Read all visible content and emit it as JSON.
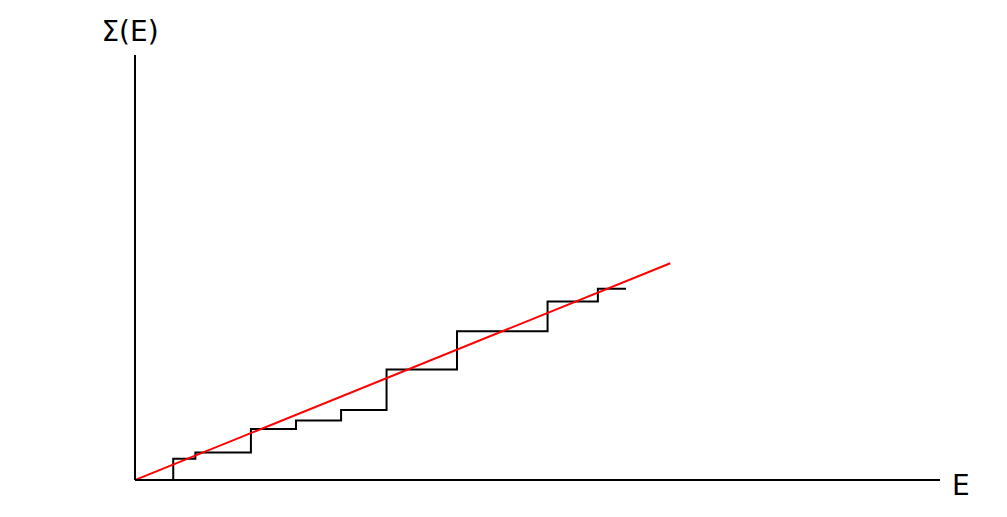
{
  "chart_data": {
    "type": "line",
    "x_label": "E",
    "y_label": "Σ(E)",
    "xlim": [
      0,
      100
    ],
    "ylim": [
      0,
      100
    ],
    "tick_labels": false,
    "grid": false,
    "series": [
      {
        "x": [
          0,
          4.75,
          7.5,
          14.4,
          20,
          25.6,
          31.25,
          40,
          51.25,
          57.5,
          61
        ],
        "values": [
          0,
          5,
          6.5,
          12,
          14,
          16.5,
          26,
          35,
          42,
          45,
          45
        ],
        "color": "#000000",
        "line_style": "step"
      },
      {
        "x": [
          0,
          66.5
        ],
        "values": [
          0,
          51
        ],
        "color": "#ff0000",
        "line_style": "solid"
      }
    ]
  }
}
